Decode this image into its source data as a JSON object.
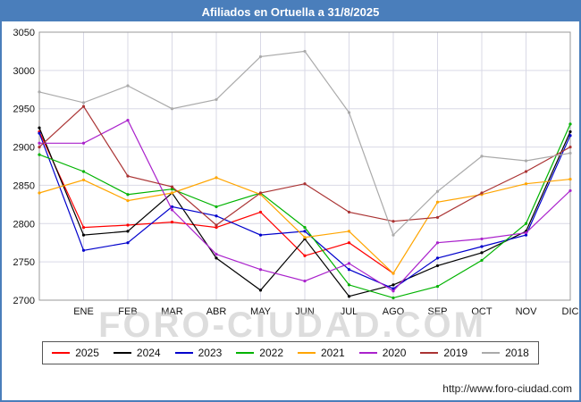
{
  "header": {
    "title": "Afiliados en Ortuella a 31/8/2025",
    "bg_color": "#4a7ebb"
  },
  "watermark": "FORO-CIUDAD.COM",
  "footer": {
    "url": "http://www.foro-ciudad.com"
  },
  "chart_data": {
    "type": "line",
    "title": "Afiliados en Ortuella a 31/8/2025",
    "xlabel": "",
    "ylabel": "",
    "ylim": [
      2700,
      3050
    ],
    "ytick_step": 50,
    "grid": true,
    "legend_position": "bottom",
    "categories": [
      "",
      "ENE",
      "FEB",
      "MAR",
      "ABR",
      "MAY",
      "JUN",
      "JUL",
      "AGO",
      "SEP",
      "OCT",
      "NOV",
      "DIC"
    ],
    "series": [
      {
        "name": "2025",
        "color": "#ff0000",
        "values": [
          2920,
          2795,
          2798,
          2802,
          2795,
          2815,
          2758,
          2775,
          2735,
          null,
          null,
          null,
          null
        ]
      },
      {
        "name": "2024",
        "color": "#000000",
        "values": [
          2925,
          2785,
          2790,
          2840,
          2755,
          2713,
          2780,
          2705,
          2720,
          2745,
          2762,
          2790,
          2920
        ]
      },
      {
        "name": "2023",
        "color": "#0000cc",
        "values": [
          2918,
          2765,
          2775,
          2822,
          2810,
          2785,
          2790,
          2740,
          2715,
          2755,
          2770,
          2785,
          2915
        ]
      },
      {
        "name": "2022",
        "color": "#00b300",
        "values": [
          2890,
          2868,
          2838,
          2845,
          2822,
          2840,
          2795,
          2720,
          2703,
          2718,
          2752,
          2800,
          2930
        ]
      },
      {
        "name": "2021",
        "color": "#ffa500",
        "values": [
          2840,
          2857,
          2830,
          2840,
          2860,
          2838,
          2782,
          2790,
          2735,
          2828,
          2838,
          2852,
          2858
        ]
      },
      {
        "name": "2020",
        "color": "#aa22cc",
        "values": [
          2905,
          2905,
          2935,
          2818,
          2760,
          2740,
          2725,
          2748,
          2712,
          2775,
          2780,
          2788,
          2843
        ]
      },
      {
        "name": "2019",
        "color": "#aa3333",
        "values": [
          2900,
          2953,
          2862,
          2848,
          2798,
          2840,
          2852,
          2815,
          2803,
          2808,
          2840,
          2868,
          2900
        ]
      },
      {
        "name": "2018",
        "color": "#aaaaaa",
        "values": [
          2972,
          2958,
          2980,
          2950,
          2962,
          3018,
          3025,
          2945,
          2785,
          2842,
          2888,
          2882,
          2892
        ]
      }
    ]
  }
}
